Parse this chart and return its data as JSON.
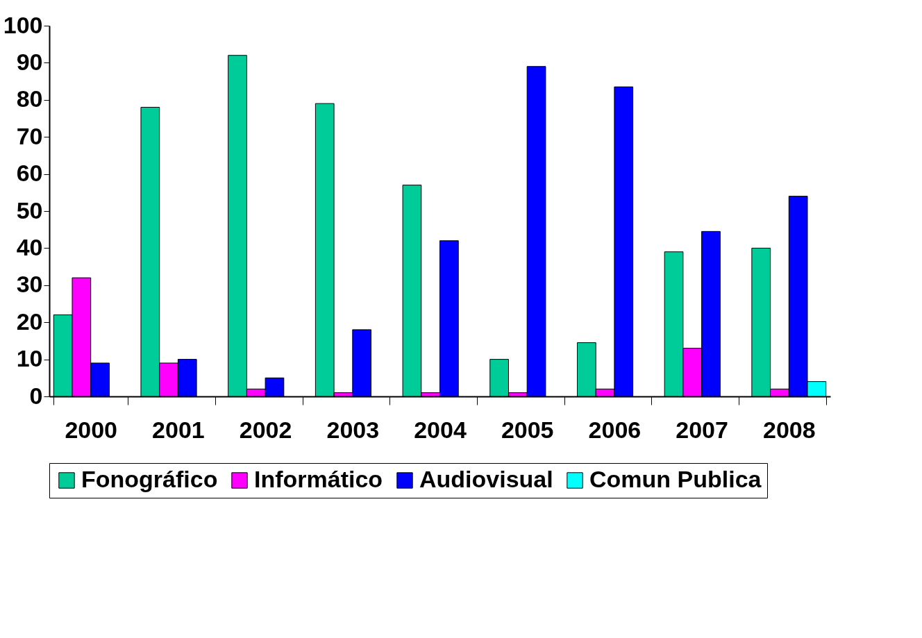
{
  "chart_data": {
    "type": "bar",
    "categories": [
      "2000",
      "2001",
      "2002",
      "2003",
      "2004",
      "2005",
      "2006",
      "2007",
      "2008"
    ],
    "series": [
      {
        "name": "Fonográfico",
        "color": "#00cc99",
        "values": [
          22,
          78,
          92,
          79,
          57,
          10,
          14.5,
          39,
          40
        ]
      },
      {
        "name": "Informático",
        "color": "#ff00ff",
        "values": [
          32,
          9,
          2,
          1,
          1,
          1,
          2,
          13,
          2
        ]
      },
      {
        "name": "Audiovisual",
        "color": "#0000ff",
        "values": [
          9,
          10,
          5,
          18,
          42,
          89,
          83.5,
          44.5,
          54
        ]
      },
      {
        "name": "Comun Publica",
        "color": "#00ffff",
        "values": [
          null,
          null,
          null,
          null,
          null,
          null,
          null,
          null,
          4
        ]
      }
    ],
    "ylim": [
      0,
      100
    ],
    "yticks": [
      0,
      10,
      20,
      30,
      40,
      50,
      60,
      70,
      80,
      90,
      100
    ],
    "grid": false,
    "legend": "bottom"
  }
}
